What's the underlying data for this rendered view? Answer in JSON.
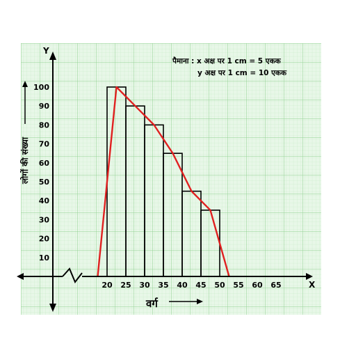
{
  "chart_data": {
    "type": "bar",
    "subtype": "histogram-with-frequency-polygon",
    "class_starts": [
      20,
      25,
      30,
      35,
      40,
      45
    ],
    "class_width": 5,
    "values": [
      100,
      90,
      80,
      65,
      45,
      35
    ],
    "polygon_points": [
      {
        "x": 17.5,
        "y": 0
      },
      {
        "x": 22.5,
        "y": 100
      },
      {
        "x": 27.5,
        "y": 90
      },
      {
        "x": 32.5,
        "y": 80
      },
      {
        "x": 37.5,
        "y": 65
      },
      {
        "x": 42.5,
        "y": 45
      },
      {
        "x": 47.5,
        "y": 35
      },
      {
        "x": 52.5,
        "y": 0
      }
    ],
    "x_ticks": [
      "20",
      "25",
      "30",
      "35",
      "40",
      "45",
      "50",
      "55",
      "60",
      "65"
    ],
    "y_ticks": [
      "10",
      "20",
      "30",
      "40",
      "50",
      "60",
      "70",
      "80",
      "90",
      "100"
    ],
    "xlim": [
      15,
      70
    ],
    "ylim": [
      0,
      100
    ],
    "xlabel": "वर्ग",
    "ylabel": "लोगों की संख्या",
    "x_axis_letter": "X",
    "y_axis_letter": "Y",
    "scale_line_1": "पैमाना : x अक्ष पर  1 cm = 5  एकक",
    "scale_line_2": "y अक्ष पर  1 cm = 10 एकक",
    "grid": true,
    "axis_break": true,
    "colors": {
      "grid_minor": "#c6ebc6",
      "grid_major": "#8fd18f",
      "background": "#e8f7e8",
      "bars": "#000000",
      "polygon": "#e02020",
      "axes": "#000000"
    }
  }
}
